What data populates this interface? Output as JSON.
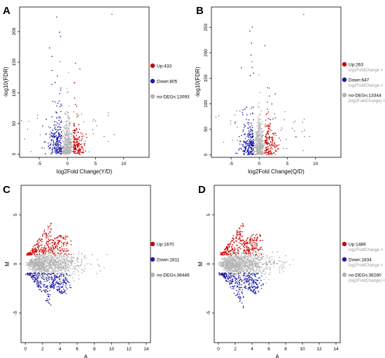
{
  "chart_data": [
    {
      "panel": "A",
      "type": "scatter",
      "xlabel": "log2Fold Change(Y/D)",
      "ylabel": "-log10(FDR)",
      "xticks": [
        -5,
        0,
        5,
        10
      ],
      "yticks": [
        0,
        50,
        100,
        150,
        200
      ],
      "xlim": [
        -8.5,
        14.5
      ],
      "ylim": [
        -5,
        240
      ],
      "legend_position": "right",
      "series": [
        {
          "label": "Up:433",
          "sub": "",
          "color": "#cc0000",
          "count": 433
        },
        {
          "label": "Down:805",
          "sub": "",
          "color": "#1a1aa8",
          "count": 805
        },
        {
          "label": "no-DEGs:13093",
          "sub": "",
          "color": "#b4b4b4",
          "count": 13093
        }
      ]
    },
    {
      "panel": "B",
      "type": "scatter",
      "xlabel": "log2Fold Change(Q/D)",
      "ylabel": "-log10(FDR)",
      "xticks": [
        -5,
        0,
        5,
        10
      ],
      "yticks": [
        0,
        50,
        100,
        150,
        200,
        250
      ],
      "xlim": [
        -8.5,
        14.5
      ],
      "ylim": [
        -5,
        290
      ],
      "legend_position": "right",
      "series": [
        {
          "label": "Up:263",
          "sub": "log2FoldChange >",
          "color": "#cc0000",
          "count": 263
        },
        {
          "label": "Down:647",
          "sub": "log2FoldChange <",
          "color": "#1a1aa8",
          "count": 647
        },
        {
          "label": "no-DEGs:13344",
          "sub": "|log2FoldChange| <",
          "color": "#b4b4b4",
          "count": 13344
        }
      ]
    },
    {
      "panel": "C",
      "type": "scatter",
      "xlabel": "A",
      "ylabel": "M",
      "xticks": [
        0,
        2,
        4,
        6,
        8,
        10,
        12,
        14
      ],
      "yticks": [
        -5,
        0,
        5
      ],
      "xlim": [
        -0.5,
        14.5
      ],
      "ylim": [
        -8,
        8
      ],
      "legend_position": "right",
      "series": [
        {
          "label": "Up:1670",
          "sub": "",
          "color": "#cc0000",
          "count": 1670
        },
        {
          "label": "Down:1811",
          "sub": "",
          "color": "#1a1aa8",
          "count": 1811
        },
        {
          "label": "no-DEGs:38446",
          "sub": "",
          "color": "#b4b4b4",
          "count": 38446
        }
      ]
    },
    {
      "panel": "D",
      "type": "scatter",
      "xlabel": "A",
      "ylabel": "M",
      "xticks": [
        0,
        2,
        4,
        6,
        8,
        10,
        12,
        14
      ],
      "yticks": [
        -5,
        0,
        5
      ],
      "xlim": [
        -0.5,
        14.5
      ],
      "ylim": [
        -8,
        8
      ],
      "legend_position": "right",
      "series": [
        {
          "label": "Up:1489",
          "sub": "log2FoldChange >",
          "color": "#cc0000",
          "count": 1489
        },
        {
          "label": "Down:1834",
          "sub": "log2FoldChange <",
          "color": "#1a1aa8",
          "count": 1834
        },
        {
          "label": "no-DEGs:38280",
          "sub": "|log2FoldChange| <",
          "color": "#b4b4b4",
          "count": 38280
        }
      ]
    }
  ]
}
